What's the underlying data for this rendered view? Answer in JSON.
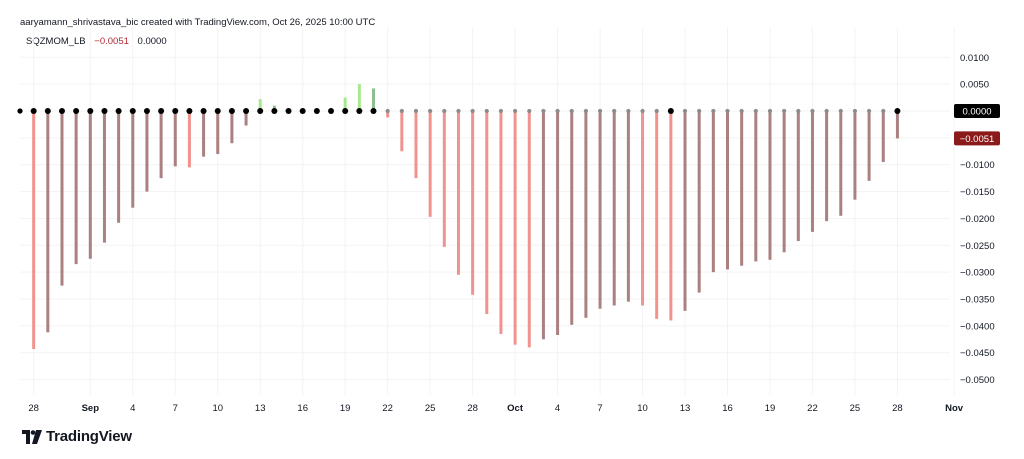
{
  "header": {
    "attribution": "aaryamann_shrivastava_bic created with TradingView.com, Oct 26, 2025 10:00 UTC"
  },
  "legend": {
    "name": "SQZMOM_LB",
    "value1": "−0.0051",
    "value2": "0.0000"
  },
  "brand": {
    "name": "TradingView",
    "logo_icon": "tradingview-logo-icon"
  },
  "colors": {
    "neg_falling": "#f0938e",
    "neg_rising": "#aa8080",
    "pos_rising": "#a6e88f",
    "pos_falling": "#8fbf8f",
    "dot_black": "#000000",
    "dot_gray": "#8c8c8c",
    "badge_zero": "#000000",
    "badge_last": "#8b1a1a"
  },
  "chart_data": {
    "type": "bar",
    "yticks": [
      "0.0100",
      "0.0050",
      "0.0000",
      "−0.0050",
      "−0.0100",
      "−0.0150",
      "−0.0200",
      "−0.0250",
      "−0.0300",
      "−0.0350",
      "−0.0400",
      "−0.0450",
      "−0.0500"
    ],
    "yticks_values": [
      0.01,
      0.005,
      0,
      -0.005,
      -0.01,
      -0.015,
      -0.02,
      -0.025,
      -0.03,
      -0.035,
      -0.04,
      -0.045,
      -0.05
    ],
    "ylim": [
      -0.054,
      0.0125
    ],
    "xticks": [
      {
        "label": "28",
        "i": 1
      },
      {
        "label": "Sep",
        "i": 5,
        "bold": true
      },
      {
        "label": "4",
        "i": 8
      },
      {
        "label": "7",
        "i": 11
      },
      {
        "label": "10",
        "i": 14
      },
      {
        "label": "13",
        "i": 17
      },
      {
        "label": "16",
        "i": 20
      },
      {
        "label": "19",
        "i": 23
      },
      {
        "label": "22",
        "i": 26
      },
      {
        "label": "25",
        "i": 29
      },
      {
        "label": "28",
        "i": 32
      },
      {
        "label": "Oct",
        "i": 35,
        "bold": true
      },
      {
        "label": "4",
        "i": 38
      },
      {
        "label": "7",
        "i": 41
      },
      {
        "label": "10",
        "i": 44
      },
      {
        "label": "13",
        "i": 47
      },
      {
        "label": "16",
        "i": 50
      },
      {
        "label": "19",
        "i": 53
      },
      {
        "label": "22",
        "i": 56
      },
      {
        "label": "25",
        "i": 59
      },
      {
        "label": "28",
        "i": 62
      },
      {
        "label": "Nov",
        "i": 66,
        "bold": true
      }
    ],
    "bars": [
      {
        "i": 1,
        "v": -0.0443,
        "c": "neg_falling",
        "dot": "dot_black"
      },
      {
        "i": 2,
        "v": -0.0412,
        "c": "neg_rising",
        "dot": "dot_black"
      },
      {
        "i": 3,
        "v": -0.0325,
        "c": "neg_rising",
        "dot": "dot_black"
      },
      {
        "i": 4,
        "v": -0.0285,
        "c": "neg_rising",
        "dot": "dot_black"
      },
      {
        "i": 5,
        "v": -0.0275,
        "c": "neg_rising",
        "dot": "dot_black"
      },
      {
        "i": 6,
        "v": -0.0245,
        "c": "neg_rising",
        "dot": "dot_black"
      },
      {
        "i": 7,
        "v": -0.0208,
        "c": "neg_rising",
        "dot": "dot_black"
      },
      {
        "i": 8,
        "v": -0.018,
        "c": "neg_rising",
        "dot": "dot_black"
      },
      {
        "i": 9,
        "v": -0.015,
        "c": "neg_rising",
        "dot": "dot_black"
      },
      {
        "i": 10,
        "v": -0.0125,
        "c": "neg_rising",
        "dot": "dot_black"
      },
      {
        "i": 11,
        "v": -0.0103,
        "c": "neg_rising",
        "dot": "dot_black"
      },
      {
        "i": 12,
        "v": -0.0105,
        "c": "neg_falling",
        "dot": "dot_black"
      },
      {
        "i": 13,
        "v": -0.0085,
        "c": "neg_rising",
        "dot": "dot_black"
      },
      {
        "i": 14,
        "v": -0.008,
        "c": "neg_rising",
        "dot": "dot_black"
      },
      {
        "i": 15,
        "v": -0.006,
        "c": "neg_rising",
        "dot": "dot_black"
      },
      {
        "i": 16,
        "v": -0.0027,
        "c": "neg_rising",
        "dot": "dot_black"
      },
      {
        "i": 17,
        "v": 0.0022,
        "c": "pos_rising",
        "dot": "dot_black"
      },
      {
        "i": 18,
        "v": 0.001,
        "c": "pos_falling",
        "dot": "dot_black"
      },
      {
        "i": 19,
        "v": 0.0,
        "c": "pos_falling",
        "dot": "dot_black"
      },
      {
        "i": 20,
        "v": 0.0,
        "c": "pos_falling",
        "dot": "dot_black"
      },
      {
        "i": 21,
        "v": 0.0,
        "c": "pos_falling",
        "dot": "dot_black"
      },
      {
        "i": 22,
        "v": 0.0,
        "c": "pos_falling",
        "dot": "dot_black"
      },
      {
        "i": 23,
        "v": 0.0025,
        "c": "pos_rising",
        "dot": "dot_black"
      },
      {
        "i": 24,
        "v": 0.005,
        "c": "pos_rising",
        "dot": "dot_black"
      },
      {
        "i": 25,
        "v": 0.0042,
        "c": "pos_falling",
        "dot": "dot_black"
      },
      {
        "i": 26,
        "v": -0.0012,
        "c": "neg_falling",
        "dot": "dot_gray"
      },
      {
        "i": 27,
        "v": -0.0075,
        "c": "neg_falling",
        "dot": "dot_gray"
      },
      {
        "i": 28,
        "v": -0.0125,
        "c": "neg_falling",
        "dot": "dot_gray"
      },
      {
        "i": 29,
        "v": -0.0197,
        "c": "neg_falling",
        "dot": "dot_gray"
      },
      {
        "i": 30,
        "v": -0.0253,
        "c": "neg_falling",
        "dot": "dot_gray"
      },
      {
        "i": 31,
        "v": -0.0305,
        "c": "neg_falling",
        "dot": "dot_gray"
      },
      {
        "i": 32,
        "v": -0.0342,
        "c": "neg_falling",
        "dot": "dot_gray"
      },
      {
        "i": 33,
        "v": -0.0378,
        "c": "neg_falling",
        "dot": "dot_gray"
      },
      {
        "i": 34,
        "v": -0.0415,
        "c": "neg_falling",
        "dot": "dot_gray"
      },
      {
        "i": 35,
        "v": -0.0435,
        "c": "neg_falling",
        "dot": "dot_gray"
      },
      {
        "i": 36,
        "v": -0.044,
        "c": "neg_falling",
        "dot": "dot_gray"
      },
      {
        "i": 37,
        "v": -0.0425,
        "c": "neg_rising",
        "dot": "dot_gray"
      },
      {
        "i": 38,
        "v": -0.0417,
        "c": "neg_rising",
        "dot": "dot_gray"
      },
      {
        "i": 39,
        "v": -0.0398,
        "c": "neg_rising",
        "dot": "dot_gray"
      },
      {
        "i": 40,
        "v": -0.0385,
        "c": "neg_rising",
        "dot": "dot_gray"
      },
      {
        "i": 41,
        "v": -0.0368,
        "c": "neg_rising",
        "dot": "dot_gray"
      },
      {
        "i": 42,
        "v": -0.0362,
        "c": "neg_rising",
        "dot": "dot_gray"
      },
      {
        "i": 43,
        "v": -0.0355,
        "c": "neg_rising",
        "dot": "dot_gray"
      },
      {
        "i": 44,
        "v": -0.0362,
        "c": "neg_falling",
        "dot": "dot_gray"
      },
      {
        "i": 45,
        "v": -0.0387,
        "c": "neg_falling",
        "dot": "dot_gray"
      },
      {
        "i": 46,
        "v": -0.039,
        "c": "neg_falling",
        "dot": "dot_black"
      },
      {
        "i": 47,
        "v": -0.0372,
        "c": "neg_rising",
        "dot": "dot_gray"
      },
      {
        "i": 48,
        "v": -0.0338,
        "c": "neg_rising",
        "dot": "dot_gray"
      },
      {
        "i": 49,
        "v": -0.03,
        "c": "neg_rising",
        "dot": "dot_gray"
      },
      {
        "i": 50,
        "v": -0.0295,
        "c": "neg_rising",
        "dot": "dot_gray"
      },
      {
        "i": 51,
        "v": -0.0288,
        "c": "neg_rising",
        "dot": "dot_gray"
      },
      {
        "i": 52,
        "v": -0.028,
        "c": "neg_rising",
        "dot": "dot_gray"
      },
      {
        "i": 53,
        "v": -0.0277,
        "c": "neg_rising",
        "dot": "dot_gray"
      },
      {
        "i": 54,
        "v": -0.0263,
        "c": "neg_rising",
        "dot": "dot_gray"
      },
      {
        "i": 55,
        "v": -0.0242,
        "c": "neg_rising",
        "dot": "dot_gray"
      },
      {
        "i": 56,
        "v": -0.0225,
        "c": "neg_rising",
        "dot": "dot_gray"
      },
      {
        "i": 57,
        "v": -0.0205,
        "c": "neg_rising",
        "dot": "dot_gray"
      },
      {
        "i": 58,
        "v": -0.0195,
        "c": "neg_rising",
        "dot": "dot_gray"
      },
      {
        "i": 59,
        "v": -0.0165,
        "c": "neg_rising",
        "dot": "dot_gray"
      },
      {
        "i": 60,
        "v": -0.013,
        "c": "neg_rising",
        "dot": "dot_gray"
      },
      {
        "i": 61,
        "v": -0.0095,
        "c": "neg_rising",
        "dot": "dot_gray"
      },
      {
        "i": 62,
        "v": -0.0051,
        "c": "neg_rising",
        "dot": "dot_black"
      }
    ],
    "badges": [
      {
        "label": "0.0000",
        "v": 0.0,
        "color": "badge_zero"
      },
      {
        "label": "−0.0051",
        "v": -0.0051,
        "color": "badge_last"
      }
    ]
  }
}
